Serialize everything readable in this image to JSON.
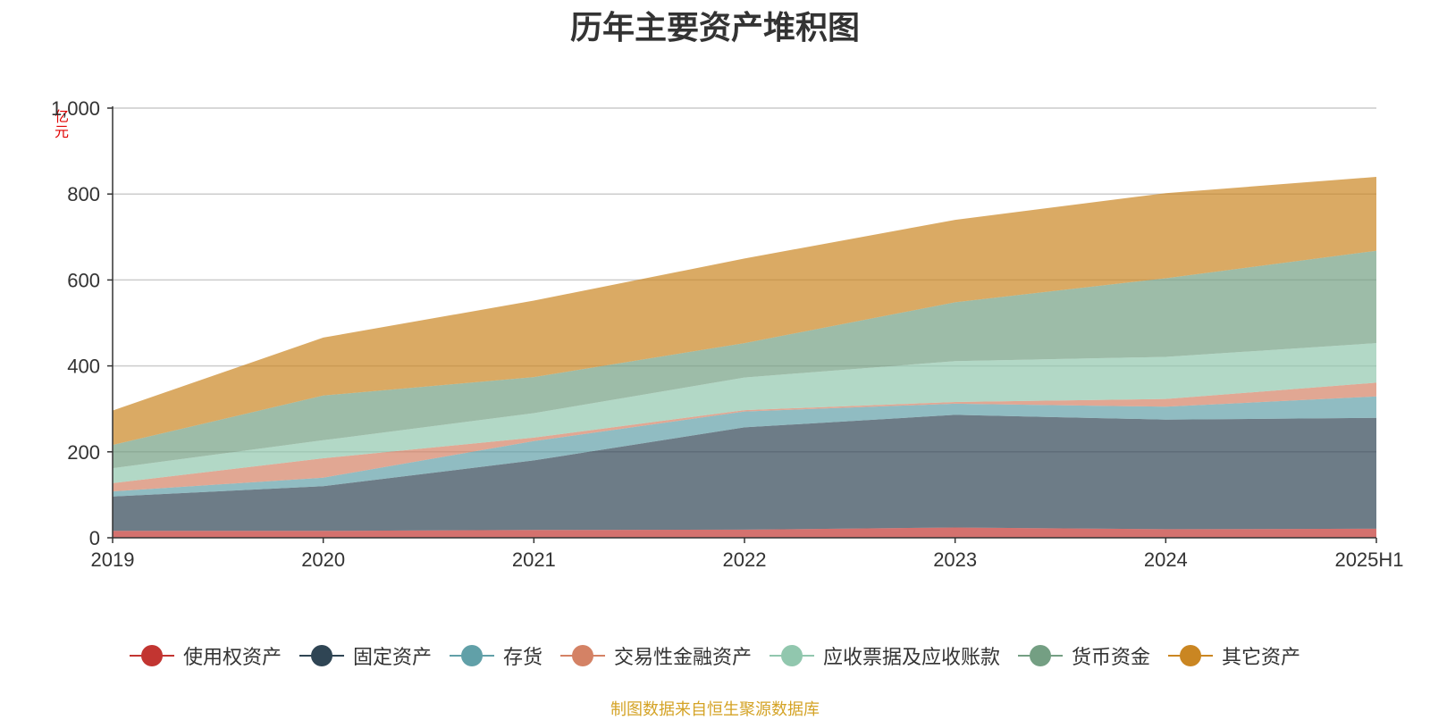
{
  "title": "历年主要资产堆积图",
  "source": "制图数据来自恒生聚源数据库",
  "chart_data": {
    "type": "area",
    "stacked": true,
    "title": "历年主要资产堆积图",
    "unit": "亿元",
    "categories": [
      "2019",
      "2020",
      "2021",
      "2022",
      "2023",
      "2024",
      "2025H1"
    ],
    "ylim": [
      0,
      1000
    ],
    "yticks": [
      "0",
      "200",
      "400",
      "600",
      "800",
      "1,000"
    ],
    "ytick_values": [
      0,
      200,
      400,
      600,
      800,
      1000
    ],
    "grid": true,
    "legend_position": "bottom",
    "series": [
      {
        "name": "使用权资产",
        "color": "#c23531",
        "values": [
          16,
          16,
          18,
          19,
          24,
          20,
          21
        ]
      },
      {
        "name": "固定资产",
        "color": "#2f4554",
        "values": [
          80,
          104,
          162,
          238,
          262,
          255,
          258
        ]
      },
      {
        "name": "存货",
        "color": "#61a0a8",
        "values": [
          12,
          20,
          45,
          37,
          26,
          30,
          50
        ]
      },
      {
        "name": "交易性金融资产",
        "color": "#d48265",
        "values": [
          19,
          45,
          8,
          3,
          4,
          18,
          32
        ]
      },
      {
        "name": "应收票据及应收账款",
        "color": "#91c7ae",
        "values": [
          35,
          42,
          57,
          76,
          95,
          98,
          92
        ]
      },
      {
        "name": "货币资金",
        "color": "#749f83",
        "values": [
          54,
          104,
          84,
          80,
          137,
          183,
          215
        ]
      },
      {
        "name": "其它资产",
        "color": "#ca8622",
        "values": [
          80,
          135,
          178,
          197,
          192,
          198,
          172
        ]
      }
    ]
  }
}
